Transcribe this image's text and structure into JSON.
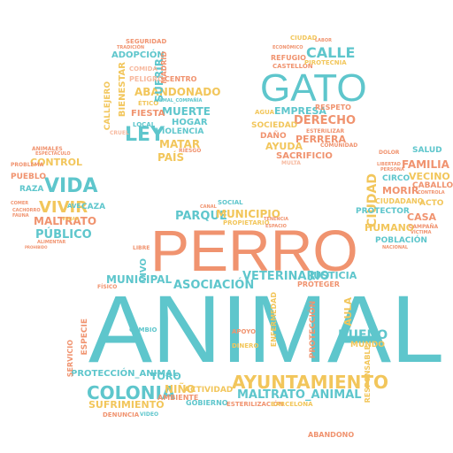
{
  "colors": {
    "teal": "#5ec6cc",
    "orange": "#f0936f",
    "yellow": "#f2c65b",
    "light_teal": "#9fd9dc",
    "light_orange": "#f7b99f",
    "light_yellow": "#f6d88e"
  },
  "pads": {
    "center": {
      "words": [
        "ANIMAL",
        "PERRO",
        "AYUNTAMIENTO",
        "COLONIA",
        "PROTECCIÓN_ANIMAL",
        "MALTRATO_ANIMAL",
        "VETERINARIO",
        "ASOCIACIÓN",
        "MUNICIPAL",
        "SUFRIMIENTO",
        "DUEÑO",
        "JUSTICIA",
        "NIÑO",
        "AMBIENTE",
        "ACTIVIDAD",
        "GOBIERNO",
        "ABANDONO",
        "TORO",
        "VIVO",
        "LIBRE",
        "PROTECCIÓN",
        "ESPECIE",
        "ENFERMEDAD",
        "CAMBIO",
        "AULA",
        "MUNDO",
        "RESPONSABLE",
        "ESTERILIZACIÓN",
        "APOYO",
        "DENUNCIA",
        "SERVICIO",
        "BARCELONA",
        "FÍSICO",
        "PROTEGER",
        "DINERO",
        "VIDEO"
      ]
    },
    "top_left": {
      "words": [
        "LEY",
        "ABANDONADO",
        "MUERTE",
        "SUFRIR",
        "MATAR",
        "PAÍS",
        "FIESTA",
        "ADOPCIÓN",
        "BIENESTAR",
        "HOGAR",
        "VIOLENCIA",
        "CENTRO",
        "CALLEJERO",
        "PELIGRO",
        "SEGURIDAD",
        "COMIDA",
        "MADRID",
        "ÉTICO",
        "ANIMAL_COMPAÑÍA",
        "LOCAL",
        "RIESGO",
        "CRUEL",
        "TRADICIÓN"
      ]
    },
    "top_right": {
      "words": [
        "GATO",
        "CALLE",
        "DERECHO",
        "EMPRESA",
        "SOCIEDAD",
        "AYUDA",
        "PERRERA",
        "SACRIFICIO",
        "REFUGIO",
        "CASTELLÓN",
        "PIROTECNIA",
        "RESPETO",
        "ESTERILIZAR",
        "COMUNIDAD",
        "DAÑO",
        "AGUA",
        "CIUDAD",
        "LABOR",
        "MULTA",
        "ECONÓMICO"
      ]
    },
    "left": {
      "words": [
        "VIDA",
        "VIVIR",
        "PÚBLICO",
        "MALTRATO",
        "CONTROL",
        "PUEBLO",
        "RAZA",
        "CAZA",
        "ANIMALES",
        "ESPECTÁCULO",
        "PROBLEMA",
        "COMER",
        "CACHORRO",
        "ALIMENTAR",
        "FAUNA",
        "VIAJAR",
        "AVE",
        "PROHIBIDO"
      ]
    },
    "right": {
      "words": [
        "FAMILIA",
        "CIUDAD",
        "HUMANO",
        "CASA",
        "VECINO",
        "MORIR",
        "SALUD",
        "CIRCO",
        "CABALLO",
        "PROTECTOR",
        "CIUDADANO",
        "ACTO",
        "POBLACIÓN",
        "DOLOR",
        "LIBERTAD",
        "PERSONA",
        "CAMPAÑA",
        "VÍCTIMA",
        "NACIONAL",
        "CONTROLA"
      ]
    },
    "middle_band": {
      "words": [
        "PARQUE",
        "MUNICIPIO",
        "SOCIAL",
        "CANAL",
        "PROPIETARIO",
        "TENENCIA",
        "ESPACIO"
      ]
    }
  }
}
